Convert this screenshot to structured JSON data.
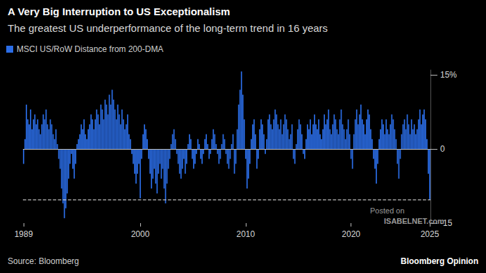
{
  "chart_data": {
    "type": "bar",
    "title": "A Very Big Interruption to US Exceptionalism",
    "subtitle": "The greatest US underperformance of the long-term trend in 16 years",
    "source": "Source: Bloomberg",
    "credit": "Bloomberg Opinion",
    "annotations": [
      "Posted on",
      "ISABELNET.com"
    ],
    "categories": [
      "1989",
      null,
      null,
      null,
      null,
      null,
      null,
      null,
      null,
      null,
      null,
      null,
      null,
      null,
      null,
      null,
      null,
      null,
      null,
      null,
      null,
      null,
      null,
      null,
      null,
      null,
      null,
      null,
      null,
      null,
      null,
      null,
      null,
      null,
      null,
      null,
      null,
      null,
      null,
      null,
      null,
      null,
      null,
      null,
      null,
      null,
      null,
      null,
      null,
      null,
      null,
      null,
      null,
      null,
      null,
      null,
      null,
      null,
      null,
      null,
      null,
      null,
      null,
      null,
      null,
      null,
      null,
      null,
      null,
      null,
      null,
      null,
      null,
      null,
      null,
      null,
      null,
      null,
      null,
      null,
      null,
      null,
      null,
      "2000",
      null,
      null,
      null,
      null,
      null,
      null,
      null,
      null,
      null,
      null,
      null,
      null,
      null,
      null,
      null,
      null,
      null,
      null,
      null,
      null,
      null,
      null,
      null,
      null,
      null,
      null,
      null,
      null,
      null,
      null,
      null,
      null,
      null,
      null,
      null,
      null,
      null,
      null,
      null,
      null,
      null,
      null,
      null,
      null,
      null,
      null,
      null,
      null,
      null,
      null,
      null,
      null,
      null,
      null,
      null,
      null,
      null,
      null,
      null,
      null,
      null,
      null,
      null,
      null,
      null,
      null,
      null,
      null,
      null,
      null,
      null,
      null,
      null,
      null,
      "2010",
      null,
      null,
      null,
      null,
      null,
      null,
      null,
      null,
      null,
      null,
      null,
      null,
      null,
      null,
      null,
      null,
      null,
      null,
      null,
      null,
      null,
      null,
      null,
      null,
      null,
      null,
      null,
      null,
      null,
      null,
      null,
      null,
      null,
      null,
      null,
      null,
      null,
      null,
      null,
      null,
      null,
      null,
      null,
      null,
      null,
      null,
      null,
      null,
      null,
      null,
      null,
      null,
      null,
      null,
      null,
      null,
      null,
      null,
      null,
      null,
      null,
      null,
      null,
      null,
      null,
      null,
      null,
      null,
      null,
      null,
      null,
      null,
      null,
      null,
      "2020",
      null,
      null,
      null,
      null,
      null,
      null,
      null,
      null,
      null,
      null,
      null,
      null,
      null,
      null,
      null,
      null,
      null,
      null,
      null,
      null,
      null,
      null,
      null,
      null,
      null,
      null,
      null,
      null,
      null,
      null,
      null,
      null,
      null,
      null,
      null,
      null,
      null,
      null,
      null,
      null,
      null,
      null,
      null,
      null,
      null,
      null,
      null,
      null,
      null,
      null,
      null,
      null,
      null,
      null,
      null,
      "2025"
    ],
    "series": [
      {
        "name": "MSCI US/RoW Distance from 200-DMA",
        "color": "#2b6de6",
        "values": [
          -3,
          2,
          9,
          6,
          5,
          8,
          4,
          6,
          7,
          5,
          6,
          4,
          3,
          5,
          7,
          6,
          8,
          5,
          4,
          6,
          5,
          3,
          2,
          4,
          1,
          -2,
          -4,
          -8,
          -11,
          -14,
          -12,
          -9,
          -6,
          -3,
          -1,
          -4,
          -6,
          -3,
          1,
          2,
          3,
          5,
          4,
          6,
          3,
          2,
          4,
          5,
          7,
          6,
          4,
          6,
          8,
          7,
          5,
          9,
          8,
          6,
          10,
          9,
          7,
          11,
          9,
          12,
          10,
          8,
          6,
          9,
          7,
          5,
          8,
          6,
          4,
          5,
          7,
          3,
          2,
          -1,
          -3,
          -5,
          -7,
          -5,
          -3,
          -10,
          -2,
          3,
          5,
          4,
          2,
          -2,
          -5,
          -8,
          -6,
          -4,
          -7,
          -9,
          -5,
          -3,
          -6,
          -4,
          -8,
          -11,
          -7,
          -4,
          -2,
          1,
          3,
          4,
          2,
          -1,
          -3,
          -5,
          -6,
          -4,
          -2,
          -5,
          -3,
          1,
          3,
          2,
          -2,
          -4,
          -3,
          -1,
          2,
          1,
          -2,
          -3,
          -1,
          2,
          3,
          1,
          -2,
          -1,
          2,
          4,
          3,
          1,
          -1,
          -3,
          -2,
          1,
          3,
          2,
          -1,
          -3,
          -4,
          -2,
          1,
          3,
          -5,
          -3,
          4,
          9,
          12,
          15.7,
          11,
          6,
          -2,
          -8,
          -6,
          -3,
          2,
          5,
          6,
          3,
          -4,
          -2,
          4,
          6,
          5,
          3,
          -1,
          2,
          6,
          7,
          5,
          4,
          6,
          8,
          7,
          5,
          4,
          6,
          3,
          5,
          7,
          6,
          4,
          2,
          3,
          5,
          -2,
          -3,
          1,
          4,
          6,
          5,
          3,
          -1,
          -2,
          2,
          5,
          4,
          6,
          3,
          5,
          7,
          5,
          4,
          6,
          3,
          2,
          4,
          7,
          5,
          6,
          8,
          4,
          3,
          5,
          7,
          6,
          4,
          3,
          6,
          8,
          5,
          4,
          2,
          4,
          6,
          3,
          -2,
          -4,
          3,
          6,
          8,
          5,
          7,
          9,
          6,
          5,
          3,
          6,
          8,
          7,
          4,
          2,
          -2,
          -4,
          -7,
          -3,
          2,
          4,
          6,
          5,
          3,
          6,
          4,
          3,
          5,
          7,
          6,
          4,
          2,
          -3,
          -6,
          -2,
          3,
          5,
          6,
          4,
          7,
          5,
          3,
          6,
          4,
          5,
          3,
          4,
          6,
          8,
          5,
          7,
          8,
          6,
          2,
          -5,
          -10.2
        ]
      }
    ],
    "ylim": [
      -15,
      16
    ],
    "yticks": [
      -15,
      0,
      {
        "value": 15,
        "label": "15%"
      }
    ],
    "reference_line": -10.2,
    "legend": "top-left",
    "grid": false
  }
}
